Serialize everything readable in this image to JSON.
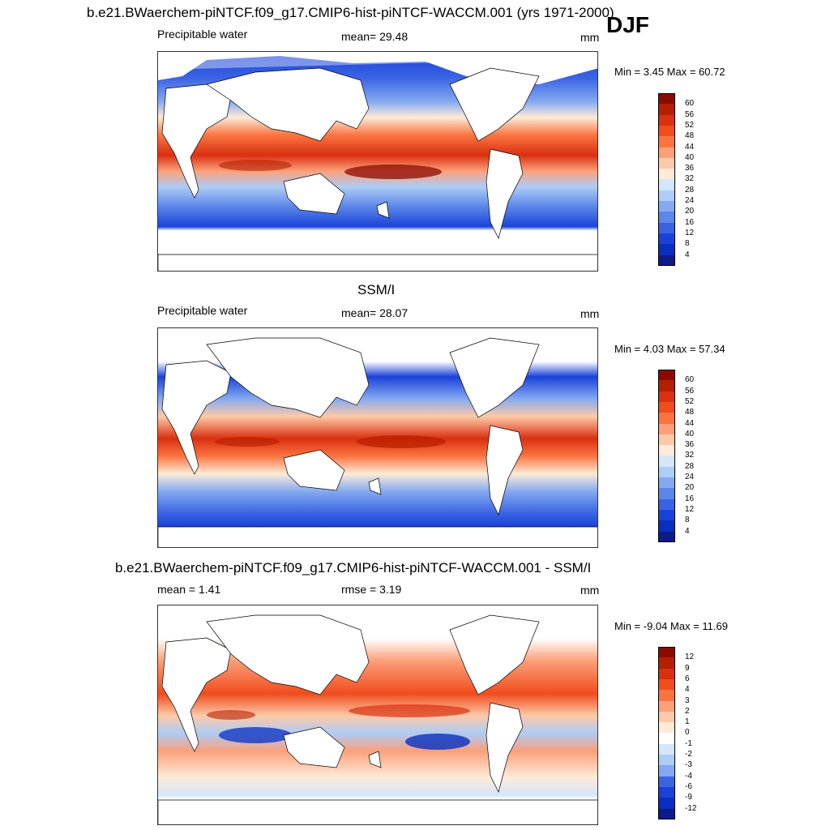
{
  "season": "DJF",
  "panels": [
    {
      "title": "b.e21.BWaerchem-piNTCF.f09_g17.CMIP6-hist-piNTCF-WACCM.001 (yrs 1971-2000)",
      "left_label": "Precipitable water",
      "center_label": "mean=  29.48",
      "units": "mm",
      "minmax": "Min =   3.45 Max =  60.72",
      "colorbar_labels": [
        "60",
        "56",
        "52",
        "48",
        "44",
        "40",
        "36",
        "32",
        "28",
        "24",
        "20",
        "16",
        "12",
        "8",
        "4"
      ],
      "colorbar_colors": [
        "#8b0a00",
        "#b61e00",
        "#d93010",
        "#f04c1c",
        "#fb7440",
        "#fca07a",
        "#fdc9a8",
        "#fdebd8",
        "#d4e6f9",
        "#adccf6",
        "#84a9f1",
        "#5b86ea",
        "#3a63e3",
        "#1a42d9",
        "#082fc0",
        "#0d1a8c"
      ],
      "map_kind": "absolute"
    },
    {
      "title": "SSM/I",
      "left_label": "Precipitable water",
      "center_label": "mean=  28.07",
      "units": "mm",
      "minmax": "Min =   4.03 Max =  57.34",
      "colorbar_labels": [
        "60",
        "56",
        "52",
        "48",
        "44",
        "40",
        "36",
        "32",
        "28",
        "24",
        "20",
        "16",
        "12",
        "8",
        "4"
      ],
      "colorbar_colors": [
        "#8b0a00",
        "#b61e00",
        "#d93010",
        "#f04c1c",
        "#fb7440",
        "#fca07a",
        "#fdc9a8",
        "#fdebd8",
        "#d4e6f9",
        "#adccf6",
        "#84a9f1",
        "#5b86ea",
        "#3a63e3",
        "#1a42d9",
        "#082fc0",
        "#0d1a8c"
      ],
      "map_kind": "absolute"
    },
    {
      "title": "b.e21.BWaerchem-piNTCF.f09_g17.CMIP6-hist-piNTCF-WACCM.001 - SSM/I",
      "left_label": "mean =   1.41",
      "center_label": "rmse =   3.19",
      "units": "mm",
      "minmax": "Min =  -9.04 Max =  11.69",
      "colorbar_labels": [
        "12",
        "9",
        "6",
        "4",
        "3",
        "2",
        "1",
        "0",
        "-1",
        "-2",
        "-3",
        "-4",
        "-6",
        "-9",
        "-12"
      ],
      "colorbar_colors": [
        "#8b0a00",
        "#b61e00",
        "#d93010",
        "#f04c1c",
        "#fb7440",
        "#fca07a",
        "#fdc9a8",
        "#fdebd8",
        "#ffffff",
        "#d4e6f9",
        "#adccf6",
        "#84a9f1",
        "#3a63e3",
        "#1a42d9",
        "#082fc0",
        "#0d1a8c"
      ],
      "map_kind": "difference"
    }
  ]
}
